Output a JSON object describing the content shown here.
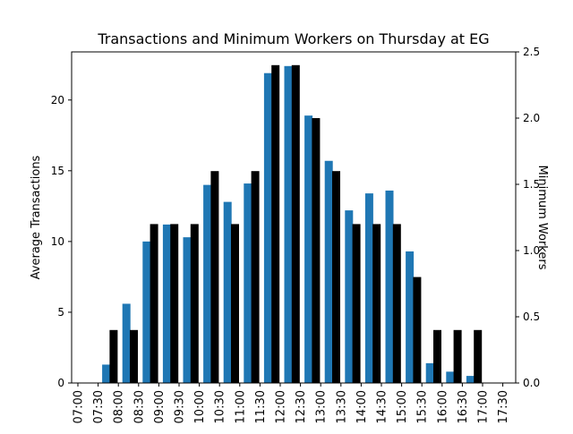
{
  "chart_data": {
    "type": "bar",
    "title": "Transactions and Minimum Workers on Thursday at EG",
    "xlabel": "",
    "ylabel": "Average Transactions",
    "ylabel_right": "Minimum Workers",
    "categories": [
      "07:00",
      "07:30",
      "08:00",
      "08:30",
      "09:00",
      "09:30",
      "10:00",
      "10:30",
      "11:00",
      "11:30",
      "12:00",
      "12:30",
      "13:00",
      "13:30",
      "14:00",
      "14:30",
      "15:00",
      "15:30",
      "16:00",
      "16:30",
      "17:00",
      "17:30"
    ],
    "ylim": [
      0,
      23.4
    ],
    "ylim_right": [
      0,
      2.5
    ],
    "yticks": [
      0,
      5,
      10,
      15,
      20
    ],
    "yticks_right": [
      "0.0",
      "0.5",
      "1.0",
      "1.5",
      "2.0",
      "2.5"
    ],
    "grid": false,
    "series": [
      {
        "axis": "left",
        "color": "#1f77b4",
        "values": [
          0,
          1.3,
          5.6,
          10.0,
          11.2,
          10.3,
          14.0,
          12.8,
          14.1,
          21.9,
          22.4,
          18.9,
          15.7,
          12.2,
          13.4,
          13.6,
          9.3,
          1.4,
          0.8,
          0.5,
          0,
          0
        ]
      },
      {
        "axis": "right",
        "color": "#000000",
        "values": [
          0,
          0.4,
          0.4,
          1.2,
          1.2,
          1.2,
          1.6,
          1.2,
          1.6,
          2.4,
          2.4,
          2.0,
          1.6,
          1.2,
          1.2,
          1.2,
          0.8,
          0.4,
          0.4,
          0.4,
          0,
          0
        ]
      }
    ]
  }
}
